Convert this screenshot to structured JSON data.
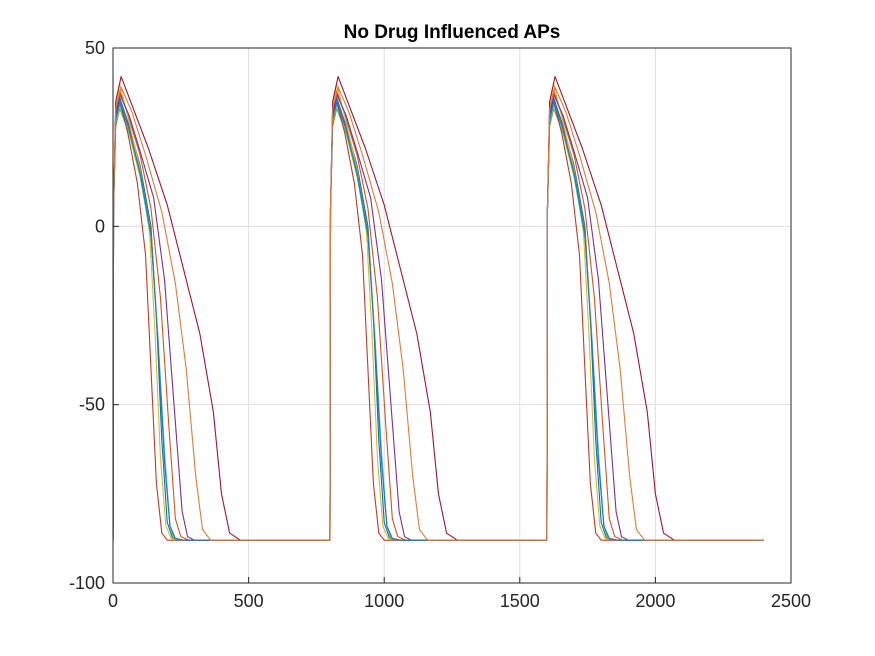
{
  "chart_data": {
    "type": "line",
    "title": "No Drug Influenced APs",
    "xlabel": "",
    "ylabel": "",
    "xlim": [
      0,
      2500
    ],
    "ylim": [
      -100,
      50
    ],
    "xticks": [
      0,
      500,
      1000,
      1500,
      2000,
      2500
    ],
    "yticks": [
      -100,
      -50,
      0,
      50
    ],
    "grid": true,
    "legend": "none",
    "beats": {
      "starts": [
        0,
        800,
        1600
      ],
      "end": 2400,
      "resting_mV": -88
    },
    "series": [
      {
        "color": "#0072BD",
        "x": [
          0,
          2,
          10,
          25,
          60,
          100,
          140,
          160,
          180,
          200,
          220,
          260,
          800
        ],
        "y": [
          -88,
          5,
          30,
          36,
          28,
          17,
          0,
          -25,
          -60,
          -83,
          -87.5,
          -88,
          -88
        ]
      },
      {
        "color": "#D95319",
        "x": [
          0,
          2,
          10,
          25,
          60,
          100,
          140,
          175,
          205,
          230,
          250,
          280,
          800
        ],
        "y": [
          -88,
          5,
          32,
          38,
          30,
          20,
          5,
          -20,
          -55,
          -82,
          -87,
          -88,
          -88
        ]
      },
      {
        "color": "#EDB120",
        "x": [
          0,
          2,
          10,
          25,
          60,
          100,
          135,
          155,
          175,
          195,
          215,
          250,
          800
        ],
        "y": [
          -88,
          5,
          33,
          40,
          29,
          16,
          -2,
          -30,
          -65,
          -84,
          -87.5,
          -88,
          -88
        ]
      },
      {
        "color": "#7E2F8E",
        "x": [
          0,
          2,
          10,
          25,
          60,
          100,
          150,
          190,
          225,
          255,
          275,
          300,
          800
        ],
        "y": [
          -88,
          5,
          31,
          37,
          31,
          21,
          8,
          -15,
          -50,
          -80,
          -87,
          -88,
          -88
        ]
      },
      {
        "color": "#77AC30",
        "x": [
          0,
          2,
          10,
          25,
          60,
          100,
          140,
          165,
          190,
          210,
          225,
          260,
          800
        ],
        "y": [
          -88,
          5,
          28,
          33,
          26,
          14,
          -3,
          -30,
          -65,
          -84,
          -87.5,
          -88,
          -88
        ]
      },
      {
        "color": "#4DBEEE",
        "x": [
          0,
          2,
          10,
          25,
          60,
          100,
          140,
          165,
          190,
          210,
          230,
          260,
          800
        ],
        "y": [
          -88,
          5,
          29,
          34,
          27,
          15,
          -2,
          -30,
          -63,
          -84,
          -87.5,
          -88,
          -88
        ]
      },
      {
        "color": "#A2142F",
        "x": [
          0,
          2,
          10,
          30,
          70,
          130,
          200,
          260,
          320,
          370,
          400,
          430,
          470,
          800
        ],
        "y": [
          -88,
          5,
          35,
          42,
          34,
          22,
          6,
          -12,
          -30,
          -52,
          -75,
          -86,
          -88,
          -88
        ]
      },
      {
        "color": "#C0392B",
        "x": [
          0,
          2,
          10,
          25,
          55,
          90,
          120,
          140,
          160,
          180,
          200,
          240,
          800
        ],
        "y": [
          -88,
          5,
          30,
          35,
          26,
          12,
          -8,
          -40,
          -72,
          -86,
          -88,
          -88,
          -88
        ]
      },
      {
        "color": "#1F77B4",
        "x": [
          0,
          2,
          10,
          25,
          60,
          100,
          140,
          165,
          190,
          210,
          230,
          260,
          800
        ],
        "y": [
          -88,
          5,
          30,
          35,
          27,
          15,
          -2,
          -32,
          -66,
          -84,
          -87.5,
          -88,
          -88
        ]
      },
      {
        "color": "#E07B39",
        "x": [
          0,
          2,
          10,
          30,
          70,
          120,
          180,
          230,
          270,
          305,
          330,
          360,
          800
        ],
        "y": [
          -88,
          5,
          33,
          39,
          32,
          20,
          4,
          -16,
          -40,
          -70,
          -85,
          -88,
          -88
        ]
      }
    ]
  }
}
